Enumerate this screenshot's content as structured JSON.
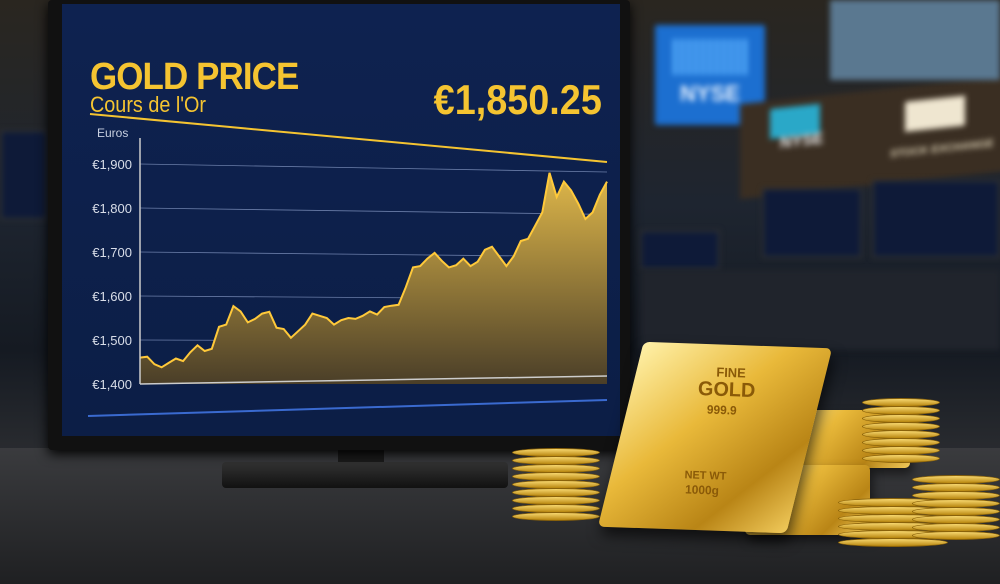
{
  "screen": {
    "title": "GOLD PRICE",
    "subtitle": "Cours de l'Or",
    "price": "€1,850.25"
  },
  "background": {
    "sign_label": "NYSE",
    "banner_label": "STOCK EXCHANGE"
  },
  "gold_bar": {
    "line1": "FINE",
    "line2": "GOLD",
    "line3": "999.9",
    "line4": "NET WT",
    "line5": "1000g"
  },
  "colors": {
    "accent": "#f5c431",
    "screen_bg": "#0d2148",
    "sign_blue": "#1c6fd0"
  },
  "chart_data": {
    "type": "area",
    "ylabel": "Euros",
    "ylim": [
      1400,
      1900
    ],
    "yticks": [
      "€1,900",
      "€1,800",
      "€1,700",
      "€1,600",
      "€1,500",
      "€1,400"
    ],
    "grid": true,
    "values": [
      1460,
      1462,
      1445,
      1438,
      1448,
      1458,
      1452,
      1472,
      1488,
      1475,
      1480,
      1530,
      1535,
      1577,
      1565,
      1540,
      1548,
      1560,
      1564,
      1528,
      1525,
      1505,
      1520,
      1535,
      1560,
      1555,
      1550,
      1535,
      1545,
      1550,
      1548,
      1555,
      1565,
      1558,
      1575,
      1578,
      1580,
      1620,
      1665,
      1668,
      1685,
      1698,
      1680,
      1665,
      1670,
      1685,
      1668,
      1678,
      1705,
      1712,
      1690,
      1668,
      1690,
      1725,
      1730,
      1760,
      1790,
      1880,
      1825,
      1860,
      1840,
      1810,
      1775,
      1790,
      1830,
      1860
    ]
  }
}
